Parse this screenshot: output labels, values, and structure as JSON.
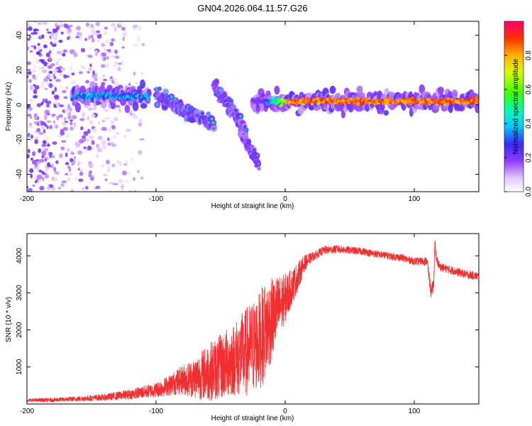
{
  "title": "GN04.2026.064.11.57.G26",
  "chart_data": [
    {
      "type": "heatmap",
      "xlabel": "Height of straight line (km)",
      "ylabel": "Frequency (Hz)",
      "xlim": [
        -200,
        150
      ],
      "ylim": [
        -50,
        48
      ],
      "xticks": [
        -200,
        -100,
        0,
        100
      ],
      "yticks": [
        -40,
        -20,
        0,
        20,
        40
      ],
      "colorbar": {
        "label": "Normalized spectral amplitude",
        "range": [
          0,
          1
        ],
        "ticks": [
          0.0,
          0.2,
          0.4,
          0.6,
          0.8
        ],
        "tick_labels": [
          "0.0",
          "0.2",
          "0.4",
          "0.6",
          "0.8"
        ]
      },
      "features": [
        {
          "name": "noise-cloud",
          "x_range": [
            -200,
            -110
          ],
          "freq_range": [
            -50,
            48
          ],
          "amplitude": 0.15
        },
        {
          "name": "main-ridge-left",
          "x_range": [
            -165,
            -105
          ],
          "freq_center": 5,
          "amplitude": 0.45
        },
        {
          "name": "diagonal-descending",
          "x_range": [
            -100,
            -55
          ],
          "freq_start": 5,
          "freq_end": -12,
          "amplitude": 0.5
        },
        {
          "name": "diagonal-branch",
          "x_range": [
            -55,
            -30
          ],
          "freq_start": 12,
          "freq_end": -15,
          "amplitude": 0.45
        },
        {
          "name": "tail-descending",
          "x_range": [
            -35,
            -20
          ],
          "freq_start": -15,
          "freq_end": -35,
          "amplitude": 0.2
        },
        {
          "name": "main-ridge-right",
          "x_range": [
            -25,
            150
          ],
          "freq_center": 2,
          "amplitude": 0.95
        }
      ]
    },
    {
      "type": "line",
      "xlabel": "Height of straight line (km)",
      "ylabel": "SNR (10 * v/v)",
      "xlim": [
        -200,
        150
      ],
      "ylim": [
        0,
        4600
      ],
      "xticks": [
        -200,
        -100,
        0,
        100
      ],
      "yticks": [
        1000,
        2000,
        3000,
        4000
      ],
      "line_color": "#f03030",
      "series": [
        {
          "name": "SNR",
          "x": [
            -200,
            -180,
            -160,
            -140,
            -120,
            -100,
            -90,
            -80,
            -70,
            -60,
            -50,
            -40,
            -30,
            -20,
            -15,
            -10,
            -5,
            0,
            5,
            10,
            15,
            20,
            25,
            30,
            40,
            50,
            60,
            70,
            80,
            90,
            100,
            110,
            113,
            115,
            116,
            117,
            120,
            130,
            140,
            150
          ],
          "mean": [
            100,
            110,
            140,
            180,
            260,
            380,
            500,
            650,
            700,
            850,
            1000,
            1200,
            1400,
            1700,
            2000,
            2300,
            2600,
            2850,
            3150,
            3450,
            3800,
            3950,
            4050,
            4150,
            4180,
            4150,
            4120,
            4050,
            4000,
            3950,
            3850,
            3850,
            3000,
            3200,
            4400,
            3900,
            3700,
            3600,
            3500,
            3450
          ],
          "noise": [
            40,
            50,
            60,
            80,
            120,
            180,
            250,
            350,
            500,
            700,
            800,
            900,
            1100,
            1200,
            1200,
            1000,
            800,
            600,
            450,
            350,
            200,
            120,
            100,
            100,
            100,
            90,
            90,
            90,
            90,
            90,
            90,
            100,
            150,
            200,
            150,
            120,
            100,
            100,
            100,
            100
          ]
        }
      ]
    }
  ]
}
